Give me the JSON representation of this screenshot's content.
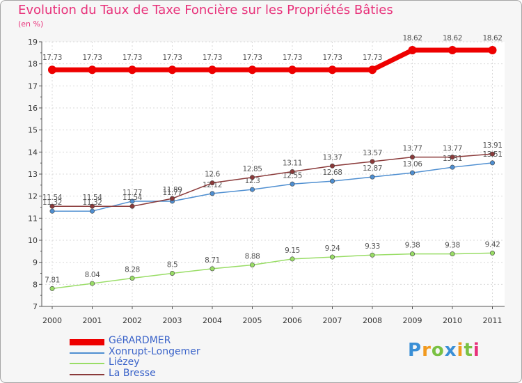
{
  "colors": {
    "title": "#e8317a",
    "axis": "#555555",
    "grid": "#d9d9d9",
    "label": "#333333"
  },
  "chart_data": {
    "type": "line",
    "title": "Evolution du Taux de Taxe Foncière sur les Propriétés Bâties",
    "ylabel": "(en %)",
    "xlabel": "",
    "ylim": [
      7,
      19
    ],
    "yticks": [
      "7",
      "8",
      "9",
      "10",
      "11",
      "12",
      "13",
      "14",
      "15",
      "16",
      "17",
      "18",
      "19"
    ],
    "categories": [
      "2000",
      "2001",
      "2002",
      "2003",
      "2004",
      "2005",
      "2006",
      "2007",
      "2008",
      "2009",
      "2010",
      "2011"
    ],
    "series": [
      {
        "name": "GéRARDMER",
        "color": "#ee0000",
        "values": [
          17.73,
          17.73,
          17.73,
          17.73,
          17.73,
          17.73,
          17.73,
          17.73,
          17.73,
          18.62,
          18.62,
          18.62
        ],
        "labels": [
          "17.73",
          "17.73",
          "17.73",
          "17.73",
          "17.73",
          "17.73",
          "17.73",
          "17.73",
          "17.73",
          "18.62",
          "18.62",
          "18.62"
        ]
      },
      {
        "name": "Xonrupt-Longemer",
        "color": "#4f8fd1",
        "values": [
          11.32,
          11.32,
          11.77,
          11.77,
          12.12,
          12.3,
          12.55,
          12.68,
          12.87,
          13.06,
          13.31,
          13.51
        ],
        "labels": [
          "11.32",
          "11.32",
          "11.77",
          "11.77",
          "12.12",
          "12.3",
          "12.55",
          "12.68",
          "12.87",
          "13.06",
          "13.31",
          "13.51"
        ]
      },
      {
        "name": "Liézey",
        "color": "#99dd66",
        "values": [
          7.81,
          8.04,
          8.28,
          8.5,
          8.71,
          8.88,
          9.15,
          9.24,
          9.33,
          9.38,
          9.38,
          9.42
        ],
        "labels": [
          "7.81",
          "8.04",
          "8.28",
          "8.5",
          "8.71",
          "8.88",
          "9.15",
          "9.24",
          "9.33",
          "9.38",
          "9.38",
          "9.42"
        ]
      },
      {
        "name": "La Bresse",
        "color": "#8a3a3a",
        "values": [
          11.54,
          11.54,
          11.54,
          11.89,
          12.6,
          12.85,
          13.11,
          13.37,
          13.57,
          13.77,
          13.77,
          13.91
        ],
        "labels": [
          "11.54",
          "11.54",
          "11.54",
          "11.89",
          "12.6",
          "12.85",
          "13.11",
          "13.37",
          "13.57",
          "13.77",
          "13.77",
          "13.91"
        ]
      }
    ],
    "legend_position": "bottom-left"
  },
  "logo": {
    "letters": [
      "P",
      "r",
      "o",
      "x",
      "i",
      "t",
      "i"
    ],
    "colors": [
      "#3a8fd6",
      "#f29a1e",
      "#7ac143",
      "#3a8fd6",
      "#f29a1e",
      "#7ac143",
      "#e8317a"
    ]
  }
}
